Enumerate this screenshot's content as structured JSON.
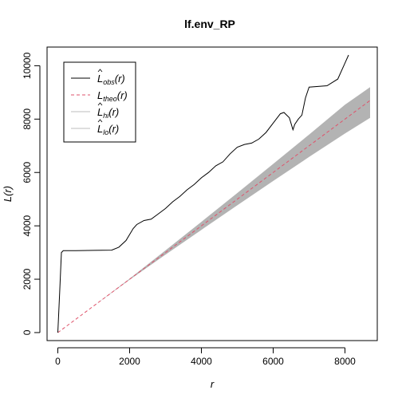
{
  "chart_data": {
    "type": "line",
    "title": "lf.env_RP",
    "xlabel": "r",
    "ylabel": "L(r)",
    "xlim": [
      -300,
      8900
    ],
    "ylim": [
      -300,
      10700
    ],
    "x_ticks": [
      0,
      2000,
      4000,
      6000,
      8000
    ],
    "y_ticks": [
      0,
      2000,
      4000,
      6000,
      8000,
      10000
    ],
    "grid": false,
    "legend_position": "top-left",
    "colors": {
      "obs": "#000000",
      "theo": "#df536b",
      "envelope": "#b3b3b3",
      "hi": "#bebebe",
      "lo": "#bebebe"
    },
    "legend": [
      {
        "key": "obs",
        "base": "L",
        "sub": "obs",
        "arg": "(r)",
        "hat": true,
        "style": "solid",
        "color": "#000000"
      },
      {
        "key": "theo",
        "base": "L",
        "sub": "theo",
        "arg": "(r)",
        "hat": false,
        "style": "dashed",
        "color": "#df536b"
      },
      {
        "key": "hi",
        "base": "L",
        "sub": "hi",
        "arg": "(r)",
        "hat": true,
        "style": "solid",
        "color": "#bebebe"
      },
      {
        "key": "lo",
        "base": "L",
        "sub": "lo",
        "arg": "(r)",
        "hat": true,
        "style": "solid",
        "color": "#bebebe"
      }
    ],
    "series": [
      {
        "name": "obs",
        "x": [
          0,
          50,
          100,
          150,
          500,
          1000,
          1500,
          1700,
          1900,
          2100,
          2200,
          2400,
          2600,
          2800,
          3000,
          3200,
          3400,
          3600,
          3800,
          4000,
          4200,
          4400,
          4600,
          4800,
          5000,
          5200,
          5400,
          5600,
          5800,
          6000,
          6200,
          6300,
          6450,
          6550,
          6600,
          6700,
          6800,
          6900,
          7000,
          7500,
          7800,
          8000,
          8100
        ],
        "y": [
          0,
          1500,
          3000,
          3070,
          3070,
          3080,
          3090,
          3200,
          3450,
          3900,
          4050,
          4200,
          4250,
          4450,
          4650,
          4900,
          5100,
          5350,
          5550,
          5800,
          6000,
          6250,
          6400,
          6700,
          6950,
          7050,
          7100,
          7250,
          7500,
          7850,
          8200,
          8250,
          8050,
          7600,
          7800,
          8000,
          8150,
          8800,
          9200,
          9250,
          9500,
          10100,
          10400
        ]
      },
      {
        "name": "theo",
        "x": [
          0,
          8700
        ],
        "y": [
          0,
          8700
        ]
      },
      {
        "name": "hi",
        "x": [
          0,
          1000,
          2000,
          3000,
          4000,
          5000,
          6000,
          7000,
          8000,
          8700
        ],
        "y": [
          0,
          1000,
          2020,
          3080,
          4150,
          5230,
          6320,
          7420,
          8540,
          9200
        ]
      },
      {
        "name": "lo",
        "x": [
          0,
          1000,
          2000,
          3000,
          4000,
          5000,
          6000,
          7000,
          8000,
          8700
        ],
        "y": [
          0,
          1000,
          1980,
          2920,
          3850,
          4770,
          5680,
          6580,
          7460,
          8050
        ]
      }
    ]
  }
}
